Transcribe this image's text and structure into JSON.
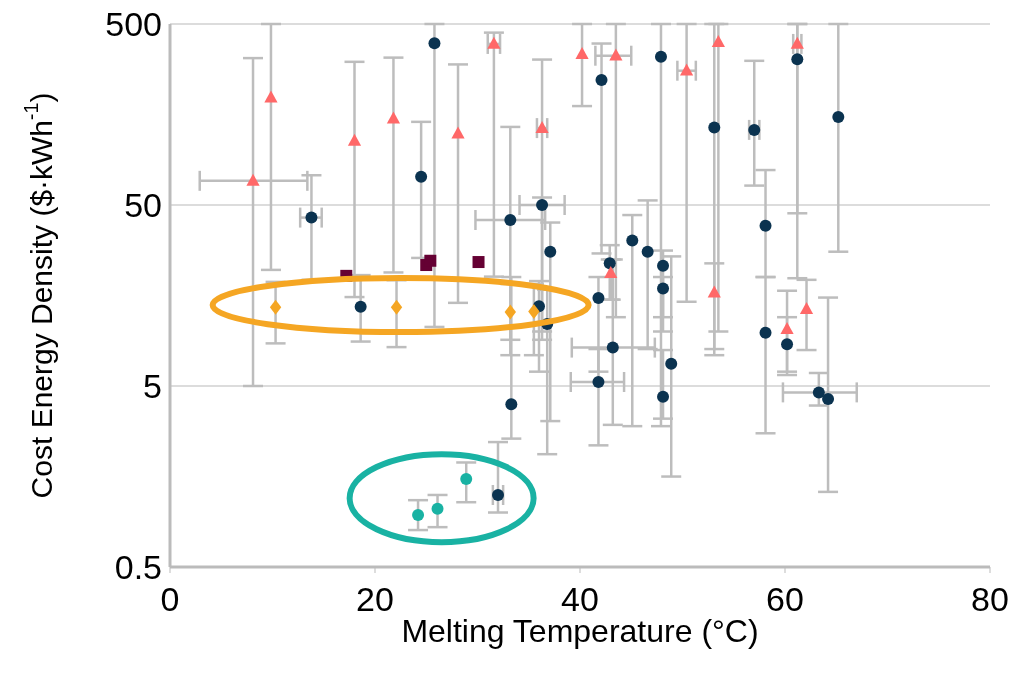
{
  "chart_data": {
    "type": "scatter",
    "xlabel": "Melting Temperature (°C)",
    "ylabel": "Cost Energy Density ($·kWh$^{-1}$)",
    "xlim": [
      0,
      80
    ],
    "xticks": [
      0,
      20,
      40,
      60,
      80
    ],
    "ylim": [
      0.5,
      500
    ],
    "yticks": [
      0.5,
      5,
      50,
      500
    ],
    "log": "y",
    "grid": "y",
    "legend": false,
    "series": [
      {
        "color": "#0b3350",
        "marker": "circle",
        "x": [
          25.8,
          13.8,
          24.5,
          18.6,
          42.1,
          47.9,
          53.1,
          57.0,
          61.2,
          65.2,
          58.1,
          58.1,
          36.3,
          33.2,
          37.1,
          45.1,
          46.6,
          48.1,
          48.1,
          42.9,
          41.8,
          36.0,
          36.8,
          33.3,
          32.0,
          43.2,
          41.8,
          48.1,
          48.9,
          60.2,
          63.3,
          64.2
        ],
        "values": [
          391,
          42.6,
          71.7,
          13.7,
          245,
          330,
          134,
          130,
          319,
          153,
          38.4,
          9.85,
          50,
          41.3,
          27.6,
          31.8,
          27.6,
          23.1,
          17.3,
          23.8,
          15.3,
          13.8,
          11.0,
          3.96,
          1.25,
          8.15,
          5.26,
          4.36,
          6.64,
          8.5,
          4.61,
          4.24
        ],
        "errors": [
          [
            10.6,
            500
          ],
          [
            19.3,
            73
          ],
          [
            25.5,
            144
          ],
          [
            8.8,
            20.5
          ],
          [
            27,
            390
          ],
          [
            3,
            500
          ],
          [
            8,
            500
          ],
          [
            64,
            313
          ],
          [
            19.7,
            500
          ],
          [
            27.6,
            500
          ],
          [
            20,
            78
          ],
          [
            2.74,
            20
          ],
          [
            9,
            55
          ],
          [
            9,
            135
          ],
          [
            3.2,
            40
          ],
          [
            3,
            44
          ],
          [
            8,
            53
          ],
          [
            12,
            28
          ],
          [
            10,
            20
          ],
          [
            15,
            30
          ],
          [
            6,
            20
          ],
          [
            6,
            19
          ],
          [
            2.1,
            17
          ],
          [
            2.56,
            20
          ],
          [
            1.0,
            2.45
          ],
          [
            3.05,
            25
          ],
          [
            2.35,
            8
          ],
          [
            3.3,
            7.9
          ],
          [
            1.58,
            26
          ],
          [
            5.75,
            12
          ],
          [
            3.9,
            5.9
          ],
          [
            1.3,
            15.4
          ]
        ],
        "xerrors": [
          null,
          [
            12.7,
            14.8
          ],
          null,
          null,
          null,
          null,
          null,
          [
            56.5,
            57.5
          ],
          null,
          null,
          null,
          null,
          [
            34.1,
            38.5
          ],
          [
            29.8,
            36.6
          ],
          null,
          null,
          null,
          null,
          null,
          null,
          null,
          null,
          null,
          null,
          [
            31.5,
            32.5
          ],
          [
            39.2,
            47.3
          ],
          [
            39.1,
            44.3
          ],
          null,
          null,
          null,
          [
            59.8,
            67.0
          ],
          null
        ]
      },
      {
        "color": "#ff6868",
        "marker": "triangle",
        "x": [
          8.1,
          9.85,
          18.0,
          21.8,
          28.1,
          31.6,
          36.3,
          40.2,
          43.5,
          50.4,
          53.5,
          61.2,
          43.0,
          53.1,
          60.2,
          62.1
        ],
        "values": [
          68,
          196,
          113,
          150,
          124,
          388,
          133,
          340,
          334,
          276,
          397,
          388,
          21,
          16.4,
          10.3,
          13.3
        ],
        "errors": [
          [
            5,
            324
          ],
          [
            21.9,
            500
          ],
          [
            15.5,
            309
          ],
          [
            21.2,
            326
          ],
          [
            14.4,
            299
          ],
          [
            20.1,
            448
          ],
          [
            10,
            318
          ],
          [
            176,
            500
          ],
          [
            12,
            500
          ],
          [
            14.6,
            500
          ],
          [
            10,
            500
          ],
          [
            45,
            500
          ],
          [
            15,
            25
          ],
          [
            7.4,
            23.8
          ],
          [
            6,
            16.8
          ],
          [
            7.9,
            19.3
          ]
        ],
        "xerrors": [
          [
            2.9,
            13.4
          ],
          null,
          null,
          null,
          null,
          [
            31,
            32.2
          ],
          [
            35.8,
            36.8
          ],
          null,
          [
            41.5,
            45
          ],
          [
            49.5,
            51.3
          ],
          null,
          [
            60.8,
            61.6
          ],
          null,
          null,
          null,
          null
        ]
      },
      {
        "color": "#650033",
        "marker": "square",
        "x": [
          17.2,
          25.0,
          25.4,
          30.1
        ],
        "values": [
          20.3,
          23.3,
          24.6,
          24.2
        ]
      },
      {
        "color": "#f5a623",
        "marker": "diamond",
        "x": [
          10.3,
          22.1,
          33.2,
          35.5
        ],
        "values": [
          13.6,
          13.6,
          12.8,
          12.9
        ],
        "errors": [
          [
            8.6,
            18.8
          ],
          [
            8.2,
            19.2
          ],
          [
            7.4,
            18.3
          ],
          [
            7.4,
            18.3
          ]
        ]
      },
      {
        "color": "#19b2a3",
        "marker": "circle",
        "x": [
          24.2,
          26.1,
          28.9
        ],
        "values": [
          0.97,
          1.05,
          1.53
        ],
        "errors": [
          [
            0.8,
            1.17
          ],
          [
            0.83,
            1.25
          ],
          [
            1.14,
            1.89
          ]
        ]
      }
    ]
  }
}
